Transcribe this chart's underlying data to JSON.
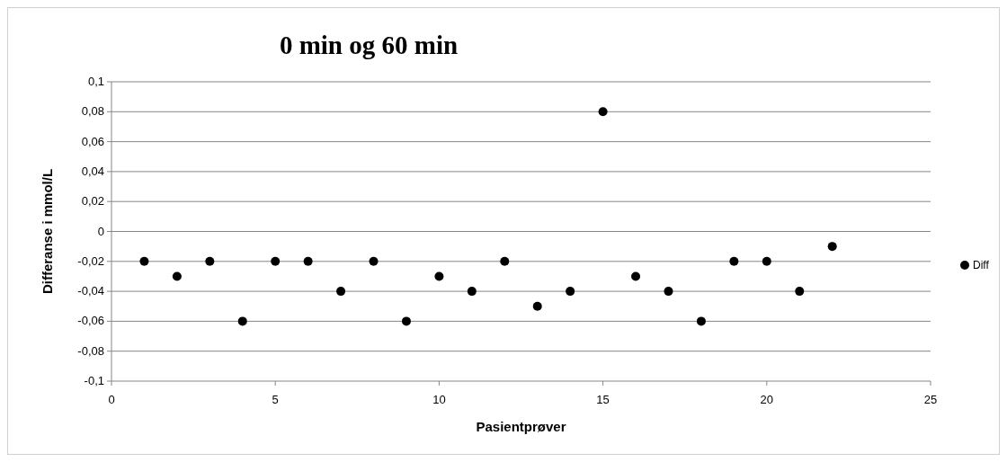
{
  "chart_data": {
    "type": "scatter",
    "title": "0 min og 60 min",
    "xlabel": "Pasientprøver",
    "ylabel": "Differanse i mmol/L",
    "x": [
      1,
      2,
      3,
      4,
      5,
      6,
      7,
      8,
      9,
      10,
      11,
      12,
      13,
      14,
      15,
      16,
      17,
      18,
      19,
      20,
      21,
      22
    ],
    "series": [
      {
        "name": "Diff",
        "color": "#000000",
        "values": [
          -0.02,
          -0.03,
          -0.02,
          -0.06,
          -0.02,
          -0.02,
          -0.04,
          -0.02,
          -0.06,
          -0.03,
          -0.04,
          -0.02,
          -0.05,
          -0.04,
          0.08,
          -0.03,
          -0.04,
          -0.06,
          -0.02,
          -0.02,
          -0.04,
          -0.01
        ]
      }
    ],
    "xlim": [
      0,
      25
    ],
    "xticks": [
      0,
      5,
      10,
      15,
      20,
      25
    ],
    "ylim": [
      -0.1,
      0.1
    ],
    "yticks": [
      {
        "value": -0.1,
        "label": "-0,1"
      },
      {
        "value": -0.08,
        "label": "-0,08"
      },
      {
        "value": -0.06,
        "label": "-0,06"
      },
      {
        "value": -0.04,
        "label": "-0,04"
      },
      {
        "value": -0.02,
        "label": "-0,02"
      },
      0,
      {
        "value": 0.02,
        "label": "0,02"
      },
      {
        "value": 0.04,
        "label": "0,04"
      },
      {
        "value": 0.06,
        "label": "0,06"
      },
      {
        "value": 0.08,
        "label": "0,08"
      },
      {
        "value": 0.1,
        "label": "0,1"
      }
    ],
    "grid": "y",
    "legend": "right",
    "marker": "circle"
  }
}
